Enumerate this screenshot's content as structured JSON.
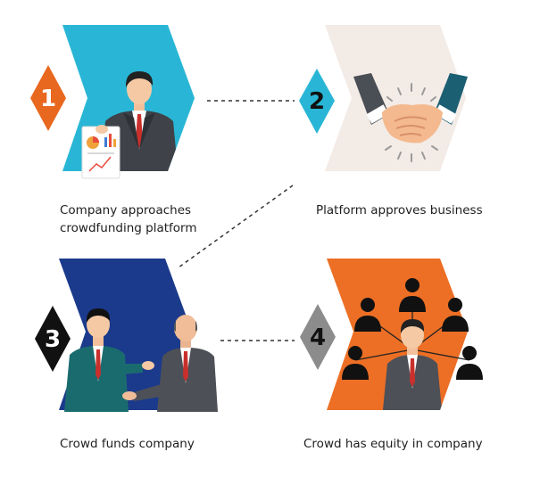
{
  "steps": [
    {
      "number": "1",
      "caption_line1": "Company approaches",
      "caption_line2": "crowdfunding platform",
      "panel_color": "#29b6d6",
      "badge_color": "#e8681f"
    },
    {
      "number": "2",
      "caption_line1": "Platform approves business",
      "caption_line2": "",
      "panel_color": "#f3ebe6",
      "badge_color": "#29b6d6"
    },
    {
      "number": "3",
      "caption_line1": "Crowd funds company",
      "caption_line2": "",
      "panel_color": "#1b3a8c",
      "badge_color": "#111111"
    },
    {
      "number": "4",
      "caption_line1": "Crowd has equity in company",
      "caption_line2": "",
      "panel_color": "#ec6f25",
      "badge_color": "#8c8c8c"
    }
  ],
  "icons": {
    "step1": "businessman-with-report-icon",
    "step2": "handshake-icon",
    "step3": "two-businessmen-talking-icon",
    "step4": "businessman-with-crowd-network-icon"
  }
}
